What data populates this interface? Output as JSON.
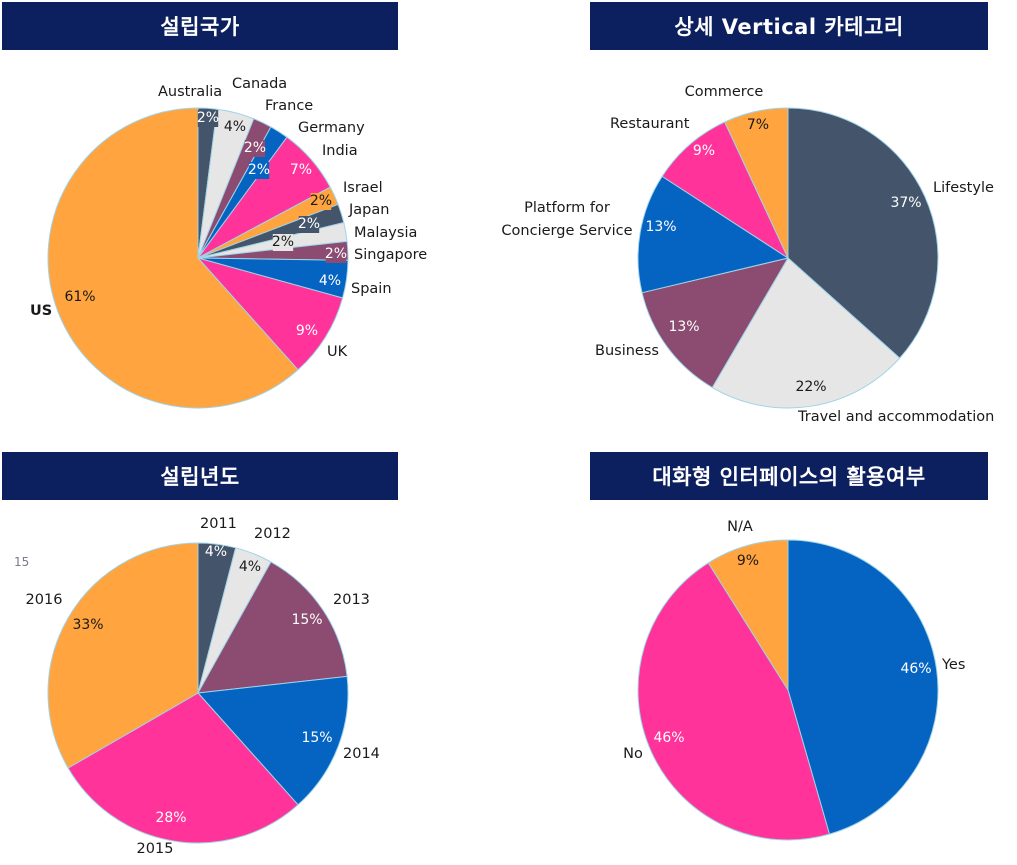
{
  "page": {
    "page_number": "15"
  },
  "colors": {
    "title_bg": "#0c1f5e",
    "slate": "#44546a",
    "orange": "#ffa43e",
    "light_gray": "#e7e6e6",
    "mauve": "#8c4b70",
    "blue": "#0563c1",
    "pink": "#ff3399"
  },
  "chart_data": [
    {
      "type": "pie",
      "title": "설립국가",
      "slices": [
        {
          "label": "Australia",
          "value": 2,
          "pct": "2%",
          "color": "#44546a"
        },
        {
          "label": "Canada",
          "value": 4,
          "pct": "4%",
          "color": "#e7e6e6"
        },
        {
          "label": "France",
          "value": 2,
          "pct": "2%",
          "color": "#8c4b70"
        },
        {
          "label": "Germany",
          "value": 2,
          "pct": "2%",
          "color": "#0563c1"
        },
        {
          "label": "India",
          "value": 7,
          "pct": "7%",
          "color": "#ff3399"
        },
        {
          "label": "Israel",
          "value": 2,
          "pct": "2%",
          "color": "#ffa43e"
        },
        {
          "label": "Japan",
          "value": 2,
          "pct": "2%",
          "color": "#44546a"
        },
        {
          "label": "Malaysia",
          "value": 2,
          "pct": "2%",
          "color": "#e7e6e6"
        },
        {
          "label": "Singapore",
          "value": 2,
          "pct": "2%",
          "color": "#8c4b70"
        },
        {
          "label": "Spain",
          "value": 4,
          "pct": "4%",
          "color": "#0563c1"
        },
        {
          "label": "UK",
          "value": 9,
          "pct": "9%",
          "color": "#ff3399"
        },
        {
          "label": "US",
          "value": 61,
          "pct": "61%",
          "color": "#ffa43e"
        }
      ]
    },
    {
      "type": "pie",
      "title": "상세 Vertical 카테고리",
      "slices": [
        {
          "label": "Lifestyle",
          "value": 37,
          "pct": "37%",
          "color": "#44546a"
        },
        {
          "label": "Travel and accommodation",
          "value": 22,
          "pct": "22%",
          "color": "#e7e6e6"
        },
        {
          "label": "Business",
          "value": 13,
          "pct": "13%",
          "color": "#8c4b70"
        },
        {
          "label": "Platform for\nConcierge Service",
          "value": 13,
          "pct": "13%",
          "color": "#0563c1"
        },
        {
          "label": "Restaurant",
          "value": 9,
          "pct": "9%",
          "color": "#ff3399"
        },
        {
          "label": "Commerce",
          "value": 7,
          "pct": "7%",
          "color": "#ffa43e"
        }
      ]
    },
    {
      "type": "pie",
      "title": "설립년도",
      "slices": [
        {
          "label": "2011",
          "value": 4,
          "pct": "4%",
          "color": "#44546a"
        },
        {
          "label": "2012",
          "value": 4,
          "pct": "4%",
          "color": "#e7e6e6"
        },
        {
          "label": "2013",
          "value": 15,
          "pct": "15%",
          "color": "#8c4b70"
        },
        {
          "label": "2014",
          "value": 15,
          "pct": "15%",
          "color": "#0563c1"
        },
        {
          "label": "2015",
          "value": 28,
          "pct": "28%",
          "color": "#ff3399"
        },
        {
          "label": "2016",
          "value": 33,
          "pct": "33%",
          "color": "#ffa43e"
        }
      ]
    },
    {
      "type": "pie",
      "title": "대화형 인터페이스의 활용여부",
      "slices": [
        {
          "label": "Yes",
          "value": 46,
          "pct": "46%",
          "color": "#0563c1"
        },
        {
          "label": "No",
          "value": 46,
          "pct": "46%",
          "color": "#ff3399"
        },
        {
          "label": "N/A",
          "value": 9,
          "pct": "9%",
          "color": "#ffa43e"
        }
      ]
    }
  ]
}
